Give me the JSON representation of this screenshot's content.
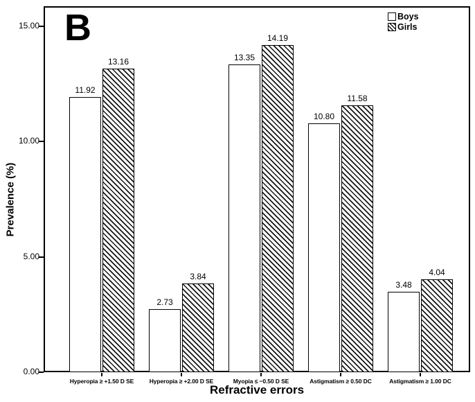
{
  "chart_data": {
    "type": "bar",
    "title": "B",
    "xlabel": "Refractive errors",
    "ylabel": "Prevalence (%)",
    "categories": [
      "Hyperopia ≥ +1.50 D SE",
      "Hyperopia ≥ +2.00 D SE",
      "Myopia ≤ −0.50 D SE",
      "Astigmatism ≥ 0.50 DC",
      "Astigmatism ≥ 1.00 DC"
    ],
    "series": [
      {
        "name": "Boys",
        "fill": "open-white",
        "values": [
          11.92,
          2.73,
          13.35,
          10.8,
          3.48
        ],
        "labels": [
          "11.92",
          "2.73",
          "13.35",
          "10.80",
          "3.48"
        ]
      },
      {
        "name": "Girls",
        "fill": "diagonal-hatch",
        "values": [
          13.16,
          3.84,
          14.19,
          11.58,
          4.04
        ],
        "labels": [
          "13.16",
          "3.84",
          "14.19",
          "11.58",
          "4.04"
        ]
      }
    ],
    "ylim": [
      0,
      15.87
    ],
    "yticks": [
      {
        "label": "0.00",
        "value": 0
      },
      {
        "label": "5.00",
        "value": 5
      },
      {
        "label": "10.00",
        "value": 10
      },
      {
        "label": "15.00",
        "value": 15
      }
    ],
    "grid": false,
    "legend": {
      "position": "top-right-inside",
      "entries": [
        {
          "label": "Boys",
          "swatch": "open-square"
        },
        {
          "label": "Girls",
          "swatch": "hatched-square"
        }
      ]
    },
    "colors": {
      "bar_border": "#000000",
      "hatch": "#141414",
      "text": "#000000",
      "background": "#ffffff"
    }
  }
}
